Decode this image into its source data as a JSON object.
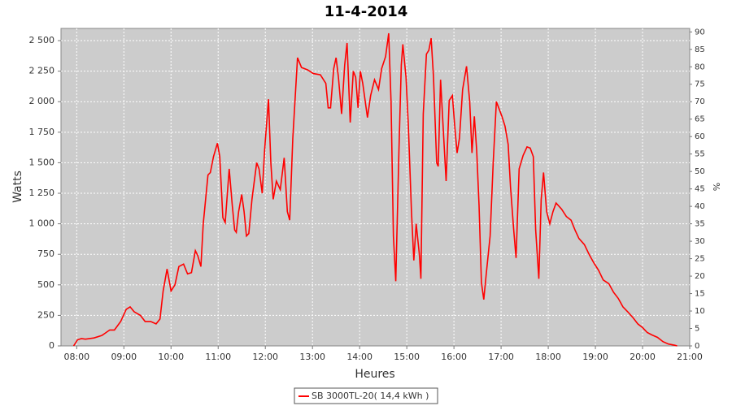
{
  "chart_data": {
    "type": "line",
    "title": "11-4-2014",
    "x_label": "Heures",
    "y_label": "Watts",
    "y2_label": "%",
    "xlim": [
      "07:40",
      "21:00"
    ],
    "xticks": [
      "08:00",
      "09:00",
      "10:00",
      "11:00",
      "12:00",
      "13:00",
      "14:00",
      "15:00",
      "16:00",
      "17:00",
      "18:00",
      "19:00",
      "20:00",
      "21:00"
    ],
    "ylim": [
      0,
      2600
    ],
    "yticks": [
      0,
      250,
      500,
      750,
      {
        "value": 1000,
        "label": "1 000"
      },
      {
        "value": 1250,
        "label": "1 250"
      },
      {
        "value": 1500,
        "label": "1 500"
      },
      {
        "value": 1750,
        "label": "1 750"
      },
      {
        "value": 2000,
        "label": "2 000"
      },
      {
        "value": 2250,
        "label": "2 250"
      },
      {
        "value": 2500,
        "label": "2 500"
      }
    ],
    "y2lim": [
      0,
      91
    ],
    "y2ticks": [
      0,
      5,
      10,
      15,
      20,
      25,
      30,
      35,
      40,
      45,
      50,
      55,
      60,
      65,
      70,
      75,
      80,
      85,
      90
    ],
    "grid": true,
    "x": [
      "07:56",
      "08:01",
      "08:06",
      "08:11",
      "08:22",
      "08:32",
      "08:42",
      "08:48",
      "08:56",
      "09:03",
      "09:08",
      "09:13",
      "09:21",
      "09:27",
      "09:34",
      "09:41",
      "09:46",
      "09:50",
      "09:55",
      "10:00",
      "10:05",
      "10:10",
      "10:16",
      "10:21",
      "10:26",
      "10:31",
      "10:34",
      "10:38",
      "10:41",
      "10:47",
      "10:50",
      "10:54",
      "10:59",
      "11:02",
      "11:06",
      "11:09",
      "11:14",
      "11:18",
      "11:21",
      "11:23",
      "11:26",
      "11:30",
      "11:33",
      "11:36",
      "11:39",
      "11:43",
      "11:49",
      "11:52",
      "11:56",
      "11:59",
      "12:04",
      "12:07",
      "12:10",
      "12:14",
      "12:19",
      "12:24",
      "12:28",
      "12:31",
      "12:35",
      "12:41",
      "12:46",
      "12:54",
      "13:01",
      "13:10",
      "13:17",
      "13:20",
      "13:23",
      "13:27",
      "13:30",
      "13:33",
      "13:37",
      "13:41",
      "13:44",
      "13:48",
      "13:52",
      "13:55",
      "13:58",
      "14:01",
      "14:04",
      "14:10",
      "14:14",
      "14:19",
      "14:24",
      "14:28",
      "14:33",
      "14:37",
      "14:40",
      "14:43",
      "14:46",
      "14:50",
      "14:53",
      "14:55",
      "14:59",
      "15:02",
      "15:06",
      "15:09",
      "15:12",
      "15:16",
      "15:18",
      "15:21",
      "15:25",
      "15:28",
      "15:31",
      "15:34",
      "15:38",
      "15:40",
      "15:43",
      "15:47",
      "15:50",
      "15:54",
      "15:58",
      "16:01",
      "16:04",
      "16:07",
      "16:11",
      "16:16",
      "16:20",
      "16:23",
      "16:26",
      "16:29",
      "16:32",
      "16:35",
      "16:38",
      "16:41",
      "16:46",
      "16:50",
      "16:54",
      "16:57",
      "17:01",
      "17:05",
      "17:09",
      "17:12",
      "17:16",
      "17:19",
      "17:23",
      "17:28",
      "17:33",
      "17:37",
      "17:41",
      "17:44",
      "17:48",
      "17:51",
      "17:54",
      "17:58",
      "18:02",
      "18:06",
      "18:10",
      "18:17",
      "18:23",
      "18:29",
      "18:34",
      "18:39",
      "18:46",
      "18:52",
      "18:58",
      "19:04",
      "19:10",
      "19:17",
      "19:23",
      "19:29",
      "19:35",
      "19:41",
      "19:48",
      "19:54",
      "20:00",
      "20:06",
      "20:12",
      "20:19",
      "20:26",
      "20:33",
      "20:41",
      "20:44"
    ],
    "series": [
      {
        "name": "SB 3000TL-20( 14,4 kWh )",
        "color": "#ff0000",
        "values": [
          0,
          50,
          60,
          55,
          65,
          85,
          130,
          130,
          200,
          300,
          320,
          280,
          250,
          200,
          200,
          180,
          220,
          450,
          630,
          450,
          500,
          650,
          670,
          590,
          600,
          780,
          740,
          650,
          1000,
          1400,
          1420,
          1550,
          1660,
          1550,
          1050,
          1010,
          1450,
          1150,
          950,
          930,
          1100,
          1240,
          1100,
          900,
          920,
          1200,
          1500,
          1450,
          1250,
          1600,
          2020,
          1500,
          1200,
          1350,
          1280,
          1540,
          1100,
          1030,
          1700,
          2360,
          2280,
          2260,
          2230,
          2220,
          2150,
          1950,
          1950,
          2270,
          2360,
          2200,
          1900,
          2300,
          2480,
          1830,
          2250,
          2200,
          1950,
          2250,
          2150,
          1870,
          2050,
          2180,
          2100,
          2270,
          2370,
          2560,
          2000,
          900,
          530,
          1600,
          2300,
          2470,
          2200,
          1800,
          1100,
          700,
          1000,
          750,
          550,
          1900,
          2390,
          2420,
          2520,
          2200,
          1500,
          1470,
          2180,
          1700,
          1350,
          2010,
          2050,
          1800,
          1580,
          1700,
          2100,
          2290,
          2000,
          1580,
          1880,
          1600,
          1150,
          520,
          380,
          580,
          900,
          1500,
          2000,
          1950,
          1880,
          1800,
          1650,
          1300,
          950,
          720,
          1450,
          1560,
          1630,
          1620,
          1550,
          950,
          550,
          1200,
          1420,
          1100,
          1000,
          1100,
          1170,
          1120,
          1060,
          1030,
          950,
          880,
          830,
          750,
          680,
          620,
          540,
          510,
          440,
          390,
          320,
          280,
          230,
          180,
          150,
          110,
          90,
          70,
          35,
          15,
          5,
          0
        ]
      }
    ]
  }
}
